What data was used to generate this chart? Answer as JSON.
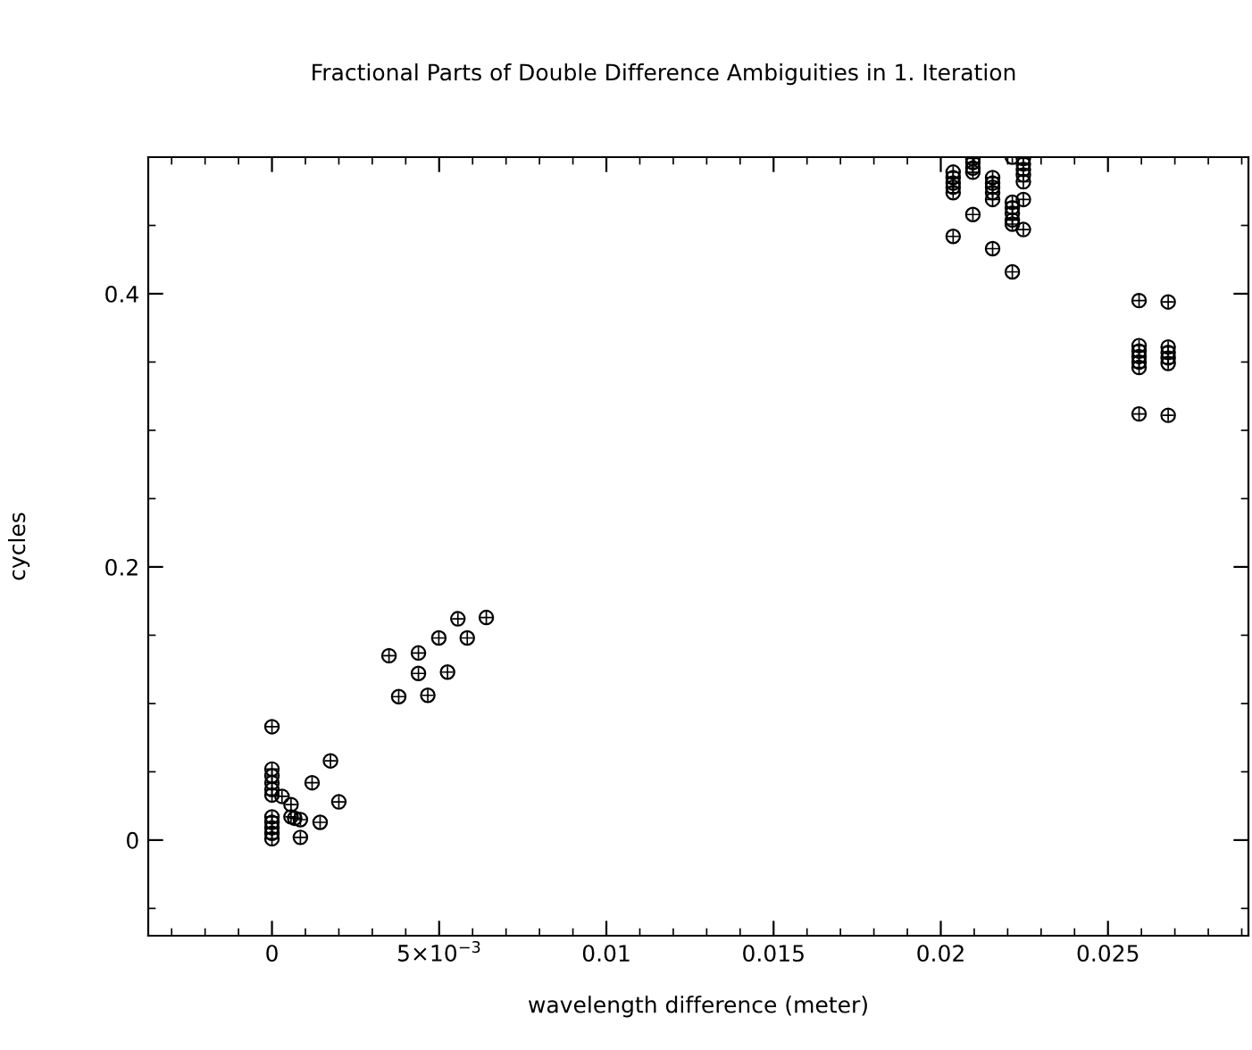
{
  "chart_data": {
    "type": "scatter",
    "title": "Fractional Parts of Double Difference Ambiguities in 1. Iteration",
    "xlabel": "wavelength difference (meter)",
    "ylabel": "cycles",
    "marker": "circle",
    "grid": false,
    "xlim": [
      -0.0037,
      0.0292
    ],
    "ylim": [
      -0.07,
      0.5
    ],
    "xticks": [
      0,
      {
        "value": 0.005,
        "label": "5×10$^{−3}$"
      },
      0.01,
      0.015,
      0.02,
      0.025
    ],
    "yticks": [
      0,
      0.2,
      0.4
    ],
    "series": [
      {
        "color": "#000000",
        "x": [
          0,
          0,
          0,
          0,
          0,
          0,
          0,
          0,
          0,
          0,
          0,
          0.0003,
          0.00057,
          0.00057,
          0.00068,
          0.00085,
          0.00085,
          0.0012,
          0.00144,
          0.00175,
          0.002,
          0.0035,
          0.00379,
          0.00438,
          0.00438,
          0.00466,
          0.00499,
          0.00525,
          0.00556,
          0.00584,
          0.00641,
          0.02037,
          0.02037,
          0.02037,
          0.02037,
          0.02037,
          0.02037,
          0.02096,
          0.02096,
          0.02096,
          0.02096,
          0.02096,
          0.02155,
          0.02155,
          0.02155,
          0.02155,
          0.02155,
          0.02155,
          0.02214,
          0.02214,
          0.02214,
          0.02214,
          0.02214,
          0.02214,
          0.02214,
          0.02247,
          0.02247,
          0.02247,
          0.02247,
          0.02247,
          0.02247,
          0.02247,
          0.02593,
          0.02593,
          0.02593,
          0.02593,
          0.02593,
          0.02593,
          0.02593,
          0.0268,
          0.0268,
          0.0268,
          0.0268,
          0.0268,
          0.0268
        ],
        "values": [
          0.083,
          0.052,
          0.047,
          0.042,
          0.037,
          0.033,
          0.017,
          0.013,
          0.009,
          0.005,
          0.001,
          0.032,
          0.026,
          0.017,
          0.016,
          0.015,
          0.002,
          0.042,
          0.013,
          0.058,
          0.028,
          0.135,
          0.105,
          0.137,
          0.122,
          0.106,
          0.148,
          0.123,
          0.162,
          0.148,
          0.163,
          0.489,
          0.485,
          0.481,
          0.478,
          0.474,
          0.442,
          0.499,
          0.496,
          0.492,
          0.489,
          0.458,
          0.485,
          0.481,
          0.478,
          0.474,
          0.469,
          0.433,
          0.5,
          0.467,
          0.463,
          0.459,
          0.454,
          0.451,
          0.416,
          0.499,
          0.495,
          0.491,
          0.487,
          0.482,
          0.469,
          0.447,
          0.395,
          0.362,
          0.358,
          0.354,
          0.35,
          0.346,
          0.312,
          0.394,
          0.361,
          0.357,
          0.353,
          0.349,
          0.311
        ]
      }
    ]
  }
}
